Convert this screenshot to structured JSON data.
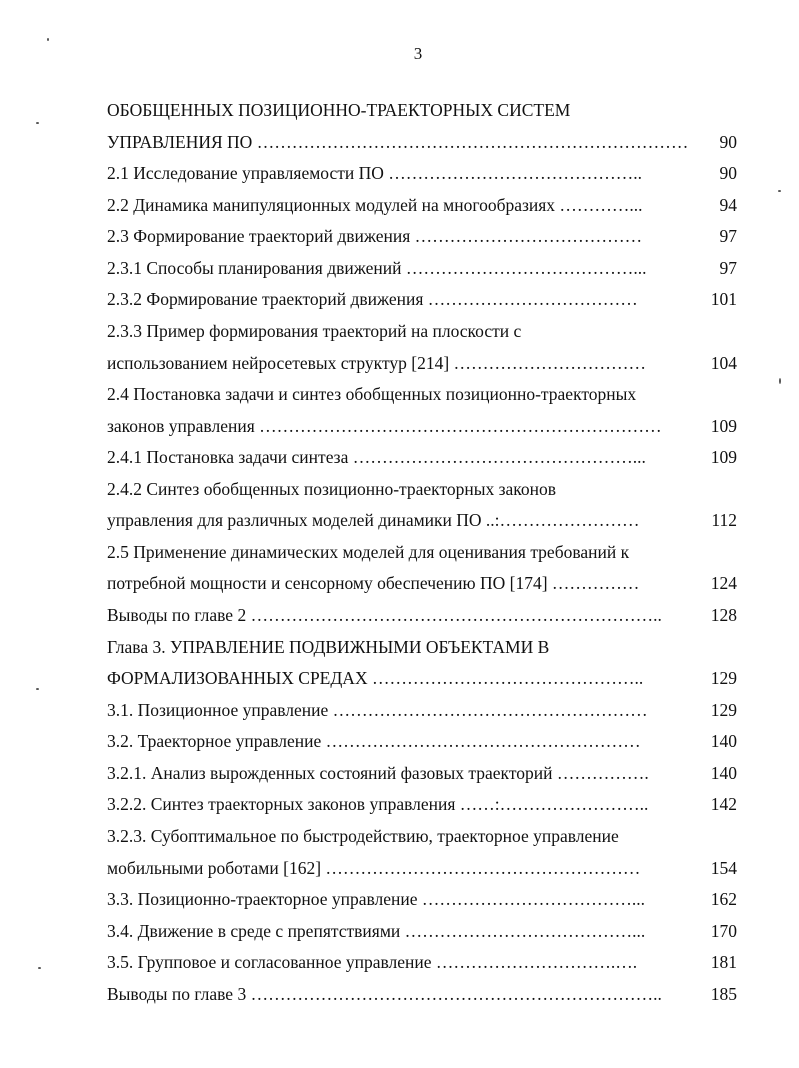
{
  "page_number": "3",
  "toc": [
    {
      "text": "ОБОБЩЕННЫХ ПОЗИЦИОННО-ТРАЕКТОРНЫХ СИСТЕМ",
      "page": ""
    },
    {
      "text": "УПРАВЛЕНИЯ ПО ………………………………………………………………………",
      "page": "90"
    },
    {
      "text": "2.1 Исследование управляемости ПО ……………………………………..",
      "page": "90"
    },
    {
      "text": "2.2 Динамика манипуляционных модулей на многообразиях …………...",
      "page": "94"
    },
    {
      "text": "2.3 Формирование траекторий движения …………………………………",
      "page": "97"
    },
    {
      "text": "2.3.1 Способы планирования движений …………………………………...",
      "page": "97"
    },
    {
      "text": "2.3.2 Формирование траекторий движения ………………………………",
      "page": "101"
    },
    {
      "text": "2.3.3 Пример формирования траекторий на плоскости с",
      "page": ""
    },
    {
      "text": "использованием нейросетевых структур [214] ……………………………",
      "page": "104"
    },
    {
      "text": "2.4 Постановка задачи и синтез обобщенных позиционно-траекторных",
      "page": ""
    },
    {
      "text": "законов управления ……………………………………………………………",
      "page": "109"
    },
    {
      "text": "2.4.1 Постановка задачи синтеза …………………………………………...",
      "page": "109"
    },
    {
      "text": "2.4.2 Синтез обобщенных позиционно-траекторных законов",
      "page": ""
    },
    {
      "text": "управления для различных моделей динамики ПО ..:……………………",
      "page": "112"
    },
    {
      "text": "2.5 Применение динамических моделей для оценивания  требований к",
      "page": ""
    },
    {
      "text": "потребной мощности и сенсорному обеспечению ПО [174] ……………",
      "page": "124"
    },
    {
      "text": "Выводы по главе 2 ……………………………………………………………..",
      "page": "128"
    },
    {
      "text": "Глава 3. УПРАВЛЕНИЕ ПОДВИЖНЫМИ ОБЪЕКТАМИ В",
      "page": ""
    },
    {
      "text": "ФОРМАЛИЗОВАННЫХ СРЕДАХ ………………………………………..",
      "page": "129"
    },
    {
      "text": "3.1. Позиционное управление ………………………………………………",
      "page": "129"
    },
    {
      "text": "3.2. Траекторное управление ………………………………………………",
      "page": "140"
    },
    {
      "text": "3.2.1. Анализ вырожденных состояний фазовых траекторий …………….",
      "page": "140"
    },
    {
      "text": "3.2.2. Синтез траекторных законов управления ……:……………………..",
      "page": "142"
    },
    {
      "text": "3.2.3. Субоптимальное по быстродействию, траекторное  управление",
      "page": ""
    },
    {
      "text": "мобильными роботами [162] ………………………………………………",
      "page": "154"
    },
    {
      "text": "3.3. Позиционно-траекторное управление ………………………………...",
      "page": "162"
    },
    {
      "text": "3.4. Движение в среде с препятствиями …………………………………...",
      "page": "170"
    },
    {
      "text": "3.5. Групповое и согласованное управление ………………………….….",
      "page": "181"
    },
    {
      "text": "Выводы по главе 3 ……………………………………………………………..",
      "page": "185"
    }
  ]
}
